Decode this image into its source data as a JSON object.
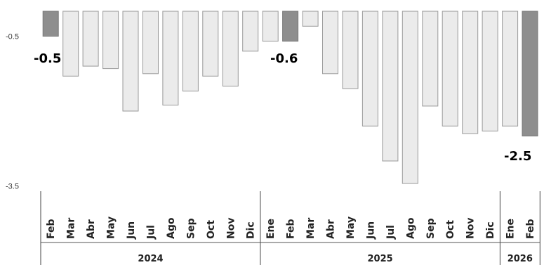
{
  "chart_data": {
    "type": "bar",
    "categories": [
      "Feb",
      "Mar",
      "Abr",
      "May",
      "Jun",
      "Jul",
      "Ago",
      "Sep",
      "Oct",
      "Nov",
      "Dic",
      "Ene",
      "Feb",
      "Mar",
      "Abr",
      "May",
      "Jun",
      "Jul",
      "Ago",
      "Sep",
      "Oct",
      "Nov",
      "Dic",
      "Ene",
      "Feb"
    ],
    "years": [
      {
        "label": "2024",
        "start": 0,
        "end": 10
      },
      {
        "label": "2025",
        "start": 11,
        "end": 22
      },
      {
        "label": "2026",
        "start": 23,
        "end": 24
      }
    ],
    "values": [
      -0.5,
      -1.3,
      -1.1,
      -1.15,
      -2.0,
      -1.25,
      -1.88,
      -1.6,
      -1.3,
      -1.5,
      -0.8,
      -0.6,
      -0.6,
      -0.3,
      -1.25,
      -1.55,
      -2.3,
      -3.0,
      -3.45,
      -1.9,
      -2.3,
      -2.45,
      -2.4,
      -2.3,
      -2.5
    ],
    "highlighted": [
      0,
      12,
      24
    ],
    "data_labels": [
      {
        "index": 0,
        "text": "-0.5"
      },
      {
        "index": 12,
        "text": "-0.6"
      },
      {
        "index": 24,
        "text": "-2.5"
      }
    ],
    "yticks": [
      "-0.5",
      "-3.5"
    ],
    "ytick_values": [
      -0.5,
      -3.5
    ],
    "ylim": [
      -3.5,
      0
    ],
    "colors": {
      "bar": "#ebebeb",
      "bar_edge": "#9a9a9a",
      "highlight": "#8e8e8e",
      "highlight_edge": "#777777"
    }
  }
}
